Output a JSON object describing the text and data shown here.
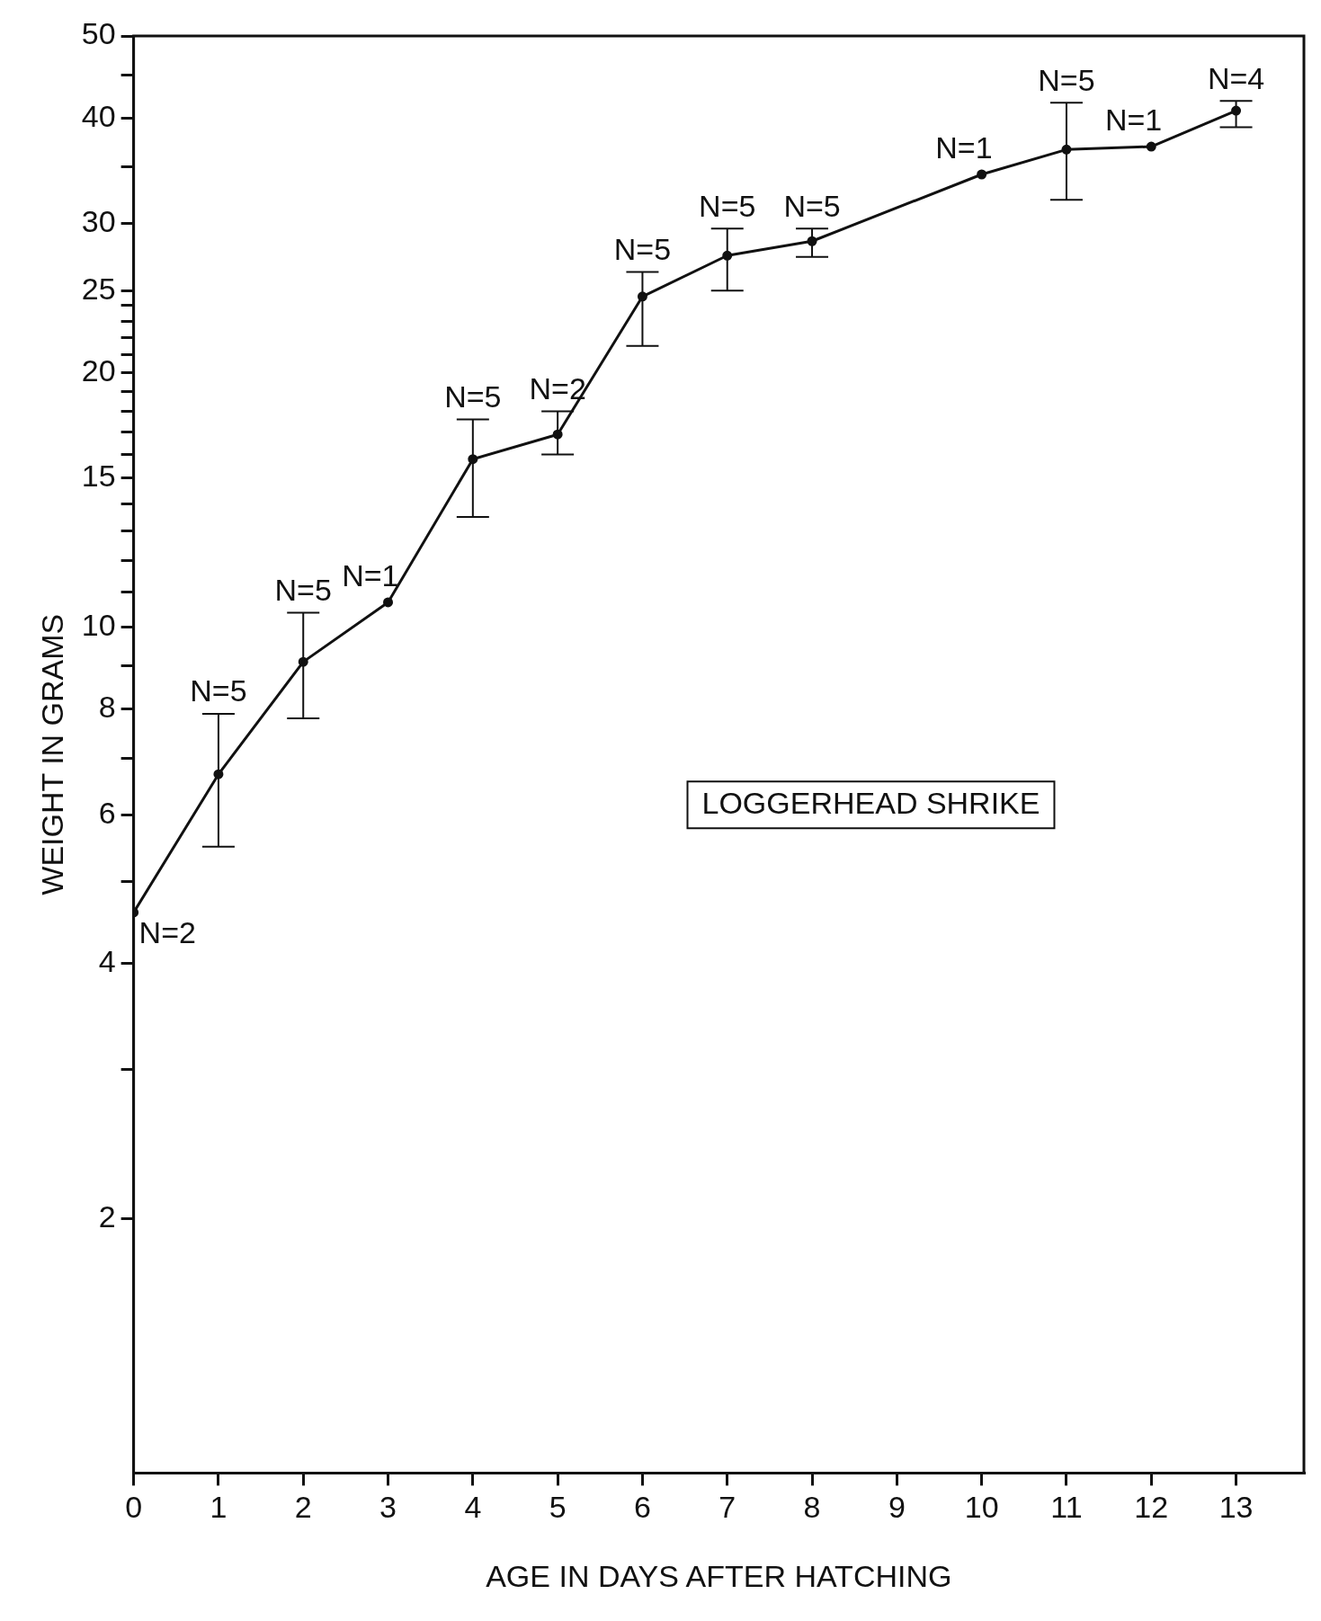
{
  "chart_data": {
    "type": "line",
    "xlabel": "AGE IN DAYS AFTER HATCHING",
    "ylabel": "WEIGHT IN GRAMS",
    "log": "y",
    "x": [
      0,
      1,
      2,
      3,
      4,
      5,
      6,
      7,
      8,
      10,
      11,
      12,
      13
    ],
    "series": [
      {
        "color": "#111111",
        "values": [
          4.6,
          6.7,
          9.1,
          10.7,
          15.8,
          16.9,
          24.6,
          27.5,
          28.6,
          34.3,
          36.7,
          37.0,
          40.8
        ],
        "errors": [
          null,
          [
            5.5,
            7.9
          ],
          [
            7.8,
            10.4
          ],
          null,
          [
            13.5,
            17.6
          ],
          [
            16.0,
            18.0
          ],
          [
            21.5,
            26.3
          ],
          [
            25.0,
            29.6
          ],
          [
            27.4,
            29.6
          ],
          null,
          [
            32.0,
            41.7
          ],
          null,
          [
            39.0,
            41.9
          ]
        ]
      }
    ],
    "marker": "circle",
    "line_style": "solid",
    "grid": false,
    "legend": false,
    "xlim": [
      0,
      13.8
    ],
    "xticks": [
      0,
      1,
      2,
      3,
      4,
      5,
      6,
      7,
      8,
      9,
      10,
      11,
      12,
      13
    ],
    "ylim": [
      1,
      50
    ],
    "yticks": [
      2,
      {
        "value": 3,
        "label": null
      },
      4,
      {
        "value": 5,
        "label": null
      },
      6,
      {
        "value": 7,
        "label": null
      },
      8,
      {
        "value": 9,
        "label": null
      },
      10,
      {
        "value": 11,
        "label": null
      },
      {
        "value": 12,
        "label": null
      },
      {
        "value": 13,
        "label": null
      },
      {
        "value": 14,
        "label": null
      },
      15,
      {
        "value": 16,
        "label": null
      },
      {
        "value": 17,
        "label": null
      },
      {
        "value": 18,
        "label": null
      },
      {
        "value": 19,
        "label": null
      },
      20,
      {
        "value": 21,
        "label": null
      },
      {
        "value": 22,
        "label": null
      },
      {
        "value": 23,
        "label": null
      },
      {
        "value": 24,
        "label": null
      },
      25,
      30,
      {
        "value": 35,
        "label": null
      },
      40,
      {
        "value": 45,
        "label": null
      },
      50
    ],
    "annotations": [
      {
        "text": "N=2",
        "x": 0,
        "y": 4.6
      },
      {
        "text": "N=5",
        "x": 1,
        "y": 7.9
      },
      {
        "text": "N=5",
        "x": 2,
        "y": 10.4
      },
      {
        "text": "N=1",
        "x": 3,
        "y": 10.7
      },
      {
        "text": "N=5",
        "x": 4,
        "y": 17.6
      },
      {
        "text": "N=2",
        "x": 5,
        "y": 18.0
      },
      {
        "text": "N=5",
        "x": 6,
        "y": 26.3
      },
      {
        "text": "N=5",
        "x": 7,
        "y": 29.6
      },
      {
        "text": "N=5",
        "x": 8,
        "y": 29.6
      },
      {
        "text": "N=1",
        "x": 10,
        "y": 34.3
      },
      {
        "text": "N=5",
        "x": 11,
        "y": 41.7
      },
      {
        "text": "N=1",
        "x": 12,
        "y": 37.0
      },
      {
        "text": "N=4",
        "x": 13,
        "y": 41.9
      },
      "LOGGERHEAD SHRIKE"
    ]
  }
}
